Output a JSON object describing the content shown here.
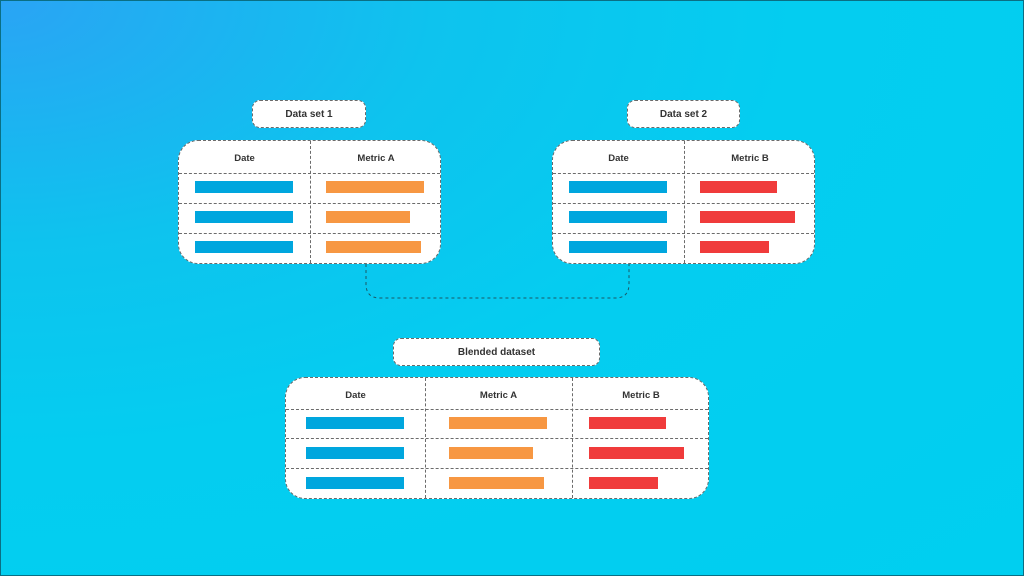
{
  "colors": {
    "date": "#00a6de",
    "metric_a": "#f79742",
    "metric_b": "#f03b3b"
  },
  "dataset1": {
    "title": "Data set 1",
    "headers": {
      "date": "Date",
      "metric": "Metric A"
    },
    "metric_fill": [
      1.0,
      0.86,
      0.97
    ]
  },
  "dataset2": {
    "title": "Data set 2",
    "headers": {
      "date": "Date",
      "metric": "Metric B"
    },
    "metric_fill": [
      0.81,
      1.0,
      0.73
    ]
  },
  "blended": {
    "title": "Blended dataset",
    "headers": {
      "date": "Date",
      "metric_a": "Metric A",
      "metric_b": "Metric B"
    },
    "metric_a_fill": [
      1.0,
      0.86,
      0.97
    ],
    "metric_b_fill": [
      0.81,
      1.0,
      0.73
    ]
  }
}
